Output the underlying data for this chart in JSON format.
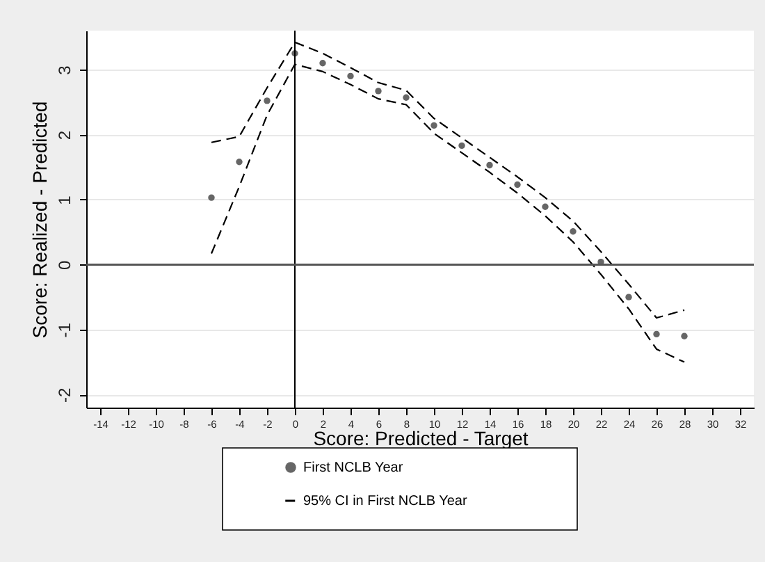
{
  "chart_data": {
    "type": "scatter",
    "xlabel": "Score: Predicted - Target",
    "ylabel": "Score: Realized - Predicted",
    "x": [
      -6,
      -4,
      -2,
      0,
      2,
      4,
      6,
      8,
      10,
      12,
      14,
      16,
      18,
      20,
      22,
      24,
      26,
      28
    ],
    "series": [
      {
        "name": "First NCLB Year",
        "color": "#666666",
        "marker": "circle",
        "values": [
          1.03,
          1.58,
          2.52,
          3.25,
          3.1,
          2.9,
          2.67,
          2.57,
          2.14,
          1.83,
          1.53,
          1.23,
          0.89,
          0.51,
          0.04,
          -0.5,
          -1.07,
          -1.1
        ]
      },
      {
        "name": "95% CI in First NCLB Year",
        "type": "line",
        "color": "#000000",
        "line_style": "dashed",
        "values": [
          1.88,
          1.97,
          2.72,
          3.42,
          3.25,
          3.03,
          2.8,
          2.68,
          2.25,
          1.95,
          1.65,
          1.35,
          1.03,
          0.67,
          0.2,
          -0.3,
          -0.82,
          -0.7
        ]
      },
      {
        "type": "line",
        "color": "#000000",
        "line_style": "dashed",
        "values": [
          0.17,
          1.2,
          2.3,
          3.08,
          2.97,
          2.77,
          2.55,
          2.46,
          2.02,
          1.72,
          1.42,
          1.1,
          0.75,
          0.35,
          -0.15,
          -0.68,
          -1.3,
          -1.5
        ]
      }
    ],
    "xlim": [
      -15,
      33
    ],
    "xticks": [
      -14,
      -12,
      -10,
      -8,
      -6,
      -4,
      -2,
      0,
      2,
      4,
      6,
      8,
      10,
      12,
      14,
      16,
      18,
      20,
      22,
      24,
      26,
      28,
      30,
      32
    ],
    "ylim": [
      -2.2,
      3.6
    ],
    "yticks": [
      -2,
      -1,
      0,
      1,
      2,
      3
    ],
    "ref_lines": [
      {
        "axis": "x",
        "value": 0,
        "color": "#000000"
      },
      {
        "axis": "y",
        "value": 0,
        "color": "#555555"
      }
    ],
    "grid": "y",
    "legend": "bottom"
  }
}
